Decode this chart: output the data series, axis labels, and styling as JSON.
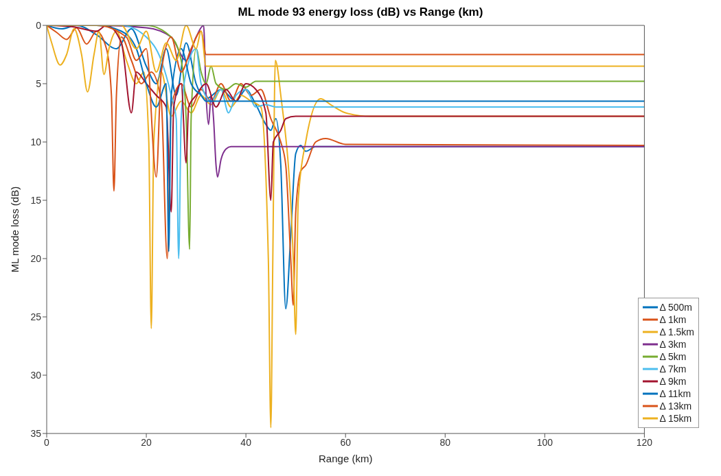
{
  "chart_data": {
    "type": "line",
    "title": "ML mode 93 energy loss (dB) vs Range (km)",
    "xlabel": "Range (km)",
    "ylabel": "ML mode loss (dB)",
    "xlim": [
      0,
      120
    ],
    "xticks": [
      0,
      20,
      40,
      60,
      80,
      100,
      120
    ],
    "ylim": [
      35,
      0
    ],
    "yticks": [
      0,
      5,
      10,
      15,
      20,
      25,
      30,
      35
    ],
    "legend": "bottom right",
    "marker": "none",
    "line_style": "solid",
    "series": [
      {
        "name": "Δ 500m",
        "color": "#0072bd",
        "x": [
          0,
          3,
          6,
          10,
          14,
          17,
          20,
          22,
          24,
          26,
          28,
          30,
          32,
          35,
          38,
          40,
          42,
          44,
          45,
          46,
          47,
          48,
          49,
          50,
          51,
          52,
          54,
          120
        ],
        "values": [
          0,
          0.3,
          0,
          0.8,
          2,
          0.3,
          3.5,
          5,
          2,
          6,
          1.5,
          5,
          6.3,
          5.5,
          6.5,
          5.5,
          6.8,
          8.5,
          9,
          8,
          12,
          24.3,
          18,
          11,
          10.3,
          10.8,
          10.4,
          10.4
        ]
      },
      {
        "name": "Δ 1km",
        "color": "#d95319",
        "x": [
          0,
          2,
          4,
          6,
          8,
          10,
          12,
          13,
          13.5,
          14,
          15,
          17,
          19,
          21,
          23,
          24.2,
          25,
          27,
          29,
          31,
          33,
          35,
          37,
          39,
          41,
          43,
          45,
          47,
          48,
          49,
          49.5,
          50,
          51,
          52,
          54,
          56,
          60,
          120
        ],
        "values": [
          0,
          0.6,
          1.2,
          0.2,
          1.6,
          0.5,
          2,
          6,
          14.2,
          6,
          1,
          3,
          5,
          4,
          6.5,
          20,
          7,
          5,
          7,
          5.5,
          6.5,
          5,
          6.5,
          5,
          6,
          5.5,
          8,
          10,
          12,
          20,
          24,
          16,
          12.5,
          12,
          10,
          9.7,
          10.2,
          10.3
        ]
      },
      {
        "name": "Δ 1.5km",
        "color": "#edb120",
        "x": [
          0,
          1,
          2.7,
          4,
          5.5,
          7,
          8.2,
          9.5,
          10.5,
          11.5,
          12.5,
          14,
          16,
          18,
          19.5,
          20.5,
          21,
          21.5,
          23,
          25,
          27,
          29,
          31,
          33,
          35,
          37,
          39,
          41,
          43,
          44.5,
          45,
          45.4,
          45.9,
          47,
          49.5,
          50,
          50.5,
          52,
          55,
          57,
          60,
          65,
          120
        ],
        "values": [
          0,
          1.5,
          3.4,
          2.5,
          0.3,
          2.5,
          5.7,
          2.5,
          0.5,
          4.2,
          2,
          0.5,
          3,
          5,
          4,
          10,
          26,
          10,
          4,
          7.8,
          6.5,
          7.5,
          6,
          6.8,
          5.5,
          7,
          6,
          6.5,
          7,
          20,
          34.5,
          20,
          3,
          6,
          20,
          26.5,
          15,
          10,
          6.3,
          6.8,
          7.5,
          7.8,
          7.8
        ]
      },
      {
        "name": "Δ 3km",
        "color": "#7e2f8e",
        "x": [
          0,
          10,
          20,
          25,
          28,
          30,
          31.5,
          32,
          32.5,
          33,
          33.5,
          34,
          34.3,
          35,
          36,
          37,
          120
        ],
        "values": [
          0,
          0,
          0.2,
          1,
          3,
          1,
          0,
          6,
          8.5,
          6,
          8,
          12,
          13,
          11.5,
          10.6,
          10.4,
          10.4
        ]
      },
      {
        "name": "Δ 5km",
        "color": "#77ac30",
        "x": [
          0,
          20,
          25,
          27,
          28,
          28.7,
          29,
          30,
          31,
          32,
          33,
          34,
          36,
          38,
          40,
          42,
          120
        ],
        "values": [
          0,
          0,
          1,
          3,
          8,
          19.2,
          8,
          2,
          4,
          5,
          3.5,
          5,
          5.5,
          5,
          5.3,
          4.8,
          4.8
        ]
      },
      {
        "name": "Δ 7km",
        "color": "#4dbeee",
        "x": [
          0,
          15,
          20,
          23,
          25,
          26,
          26.5,
          27,
          28,
          30,
          31,
          33,
          35,
          36.5,
          38,
          40,
          42,
          44,
          46,
          120
        ],
        "values": [
          0,
          0,
          1,
          3,
          6,
          8,
          20,
          8,
          4,
          2,
          5,
          6.5,
          5.5,
          7.5,
          6,
          5.5,
          7,
          6.8,
          7,
          7
        ]
      },
      {
        "name": "Δ 9km",
        "color": "#a2142f",
        "x": [
          0,
          5,
          10,
          12,
          15,
          17,
          18,
          20,
          22,
          24,
          25,
          25.5,
          27,
          28,
          28.5,
          30,
          32,
          34,
          36,
          38,
          40,
          42,
          44,
          45,
          45.5,
          47,
          48,
          50,
          120
        ],
        "values": [
          0,
          0.1,
          0.5,
          0,
          1.5,
          7.5,
          4,
          5,
          6,
          7,
          16,
          7,
          5,
          11.8,
          7,
          6,
          5,
          7,
          5.5,
          6.5,
          5,
          5.5,
          7.5,
          15,
          10,
          9,
          8,
          7.8,
          7.8
        ]
      },
      {
        "name": "Δ 11km",
        "color": "#0072bd",
        "x": [
          0,
          10,
          15,
          18,
          20,
          22,
          24,
          24.5,
          25,
          27,
          29,
          31,
          32,
          120
        ],
        "values": [
          0,
          0,
          0.5,
          2,
          5,
          7,
          5,
          19.4,
          6,
          2,
          5,
          6,
          6.5,
          6.5
        ]
      },
      {
        "name": "Δ 13km",
        "color": "#d95319",
        "x": [
          0,
          10,
          16,
          18,
          20,
          22,
          23,
          25,
          27,
          29,
          31,
          32,
          120
        ],
        "values": [
          0,
          0,
          1,
          3,
          2,
          13,
          4,
          1,
          4,
          2,
          0.5,
          2.5,
          2.5
        ]
      },
      {
        "name": "Δ 15km",
        "color": "#edb120",
        "x": [
          0,
          15,
          18,
          20,
          22,
          24,
          26,
          28,
          30,
          31,
          32,
          120
        ],
        "values": [
          0,
          0,
          2,
          0.5,
          4,
          1.5,
          3,
          0,
          2,
          0.5,
          3.5,
          3.5
        ]
      }
    ]
  }
}
